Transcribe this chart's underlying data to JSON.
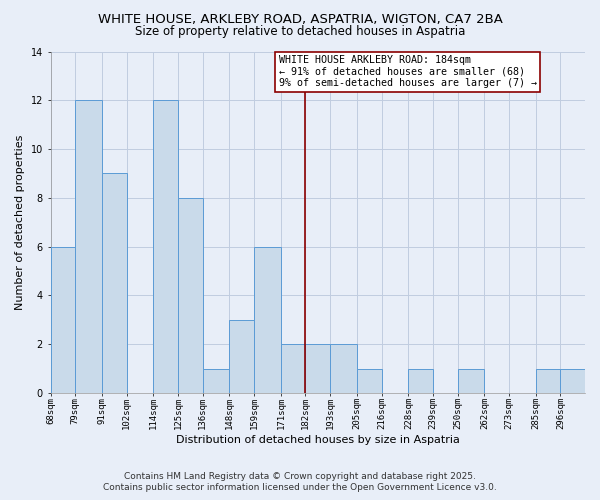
{
  "title": "WHITE HOUSE, ARKLEBY ROAD, ASPATRIA, WIGTON, CA7 2BA",
  "subtitle": "Size of property relative to detached houses in Aspatria",
  "xlabel": "Distribution of detached houses by size in Aspatria",
  "ylabel": "Number of detached properties",
  "bar_edges": [
    68,
    79,
    91,
    102,
    114,
    125,
    136,
    148,
    159,
    171,
    182,
    193,
    205,
    216,
    228,
    239,
    250,
    262,
    273,
    285,
    296,
    307
  ],
  "bar_heights": [
    6,
    12,
    9,
    0,
    12,
    8,
    1,
    3,
    6,
    2,
    2,
    2,
    1,
    0,
    1,
    0,
    1,
    0,
    0,
    1,
    1
  ],
  "bar_color": "#c9daea",
  "bar_edge_color": "#5b9bd5",
  "grid_color": "#c0cce0",
  "background_color": "#e8eef8",
  "red_line_x": 182,
  "annotation_line1": "WHITE HOUSE ARKLEBY ROAD: 184sqm",
  "annotation_line2": "← 91% of detached houses are smaller (68)",
  "annotation_line3": "9% of semi-detached houses are larger (7) →",
  "annotation_box_color": "#ffffff",
  "ylim": [
    0,
    14
  ],
  "yticks": [
    0,
    2,
    4,
    6,
    8,
    10,
    12,
    14
  ],
  "tick_labels": [
    "68sqm",
    "79sqm",
    "91sqm",
    "102sqm",
    "114sqm",
    "125sqm",
    "136sqm",
    "148sqm",
    "159sqm",
    "171sqm",
    "182sqm",
    "193sqm",
    "205sqm",
    "216sqm",
    "228sqm",
    "239sqm",
    "250sqm",
    "262sqm",
    "273sqm",
    "285sqm",
    "296sqm"
  ],
  "footer_line1": "Contains HM Land Registry data © Crown copyright and database right 2025.",
  "footer_line2": "Contains public sector information licensed under the Open Government Licence v3.0.",
  "title_fontsize": 9.5,
  "subtitle_fontsize": 8.5,
  "axis_label_fontsize": 8,
  "tick_fontsize": 6.5,
  "annotation_fontsize": 7.2,
  "footer_fontsize": 6.5
}
